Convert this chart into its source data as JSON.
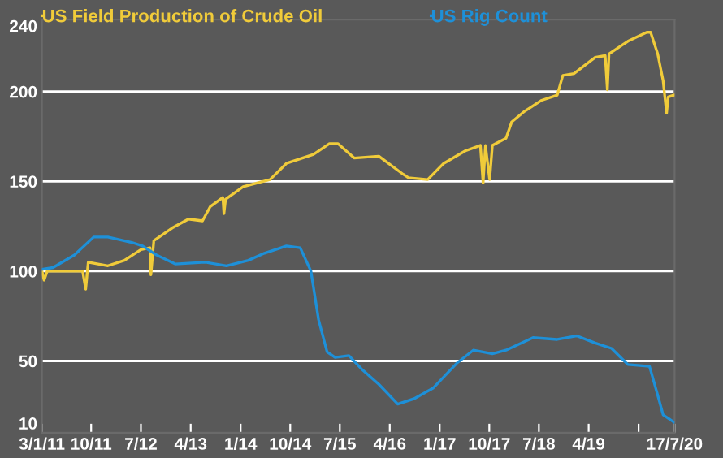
{
  "chart_data": {
    "type": "line",
    "legend": "top left",
    "grid": "y",
    "xlim": [
      "2011-01-03",
      "2020-07-17"
    ],
    "xticks": [
      {
        "value": "2011-01-03",
        "label": "3/1/11"
      },
      {
        "value": "2011-10-01",
        "label": "10/11"
      },
      {
        "value": "2012-07-01",
        "label": "7/12"
      },
      {
        "value": "2013-04-01",
        "label": "4/13"
      },
      {
        "value": "2014-01-01",
        "label": "1/14"
      },
      {
        "value": "2014-10-01",
        "label": "10/14"
      },
      {
        "value": "2015-07-01",
        "label": "7/15"
      },
      {
        "value": "2016-04-01",
        "label": "4/16"
      },
      {
        "value": "2017-01-01",
        "label": "1/17"
      },
      {
        "value": "2017-10-01",
        "label": "10/17"
      },
      {
        "value": "2018-07-01",
        "label": "7/18"
      },
      {
        "value": "2019-04-01",
        "label": "4/19"
      },
      {
        "value": "2020-01-01",
        "label": null
      },
      {
        "value": "2020-07-17",
        "label": "17/7/20"
      }
    ],
    "ylim": [
      10,
      240
    ],
    "yticks": [
      10,
      50,
      100,
      150,
      200,
      240
    ],
    "series": [
      {
        "name": "US Field Production of Crude Oil",
        "color": "#f0cb3a",
        "x": [
          "2011-01-03",
          "2011-01-15",
          "2011-02-01",
          "2011-07-01",
          "2011-08-15",
          "2011-09-01",
          "2011-09-15",
          "2012-01-01",
          "2012-04-01",
          "2012-07-01",
          "2012-08-20",
          "2012-08-25",
          "2012-09-10",
          "2012-12-20",
          "2013-03-20",
          "2013-06-05",
          "2013-07-18",
          "2013-09-25",
          "2013-10-01",
          "2013-10-10",
          "2014-01-15",
          "2014-06-12",
          "2014-09-10",
          "2015-02-06",
          "2015-05-05",
          "2015-06-20",
          "2015-09-18",
          "2016-02-01",
          "2016-06-13",
          "2016-07-13",
          "2016-10-27",
          "2017-01-23",
          "2017-05-22",
          "2017-08-13",
          "2017-08-28",
          "2017-09-10",
          "2017-10-03",
          "2017-10-18",
          "2018-01-01",
          "2018-02-01",
          "2018-04-13",
          "2018-07-13",
          "2018-10-10",
          "2018-11-10",
          "2019-01-10",
          "2019-05-07",
          "2019-07-01",
          "2019-07-13",
          "2019-07-22",
          "2019-11-03",
          "2020-02-15",
          "2020-03-07",
          "2020-04-15",
          "2020-05-15",
          "2020-06-03",
          "2020-06-12",
          "2020-07-13"
        ],
        "values": [
          100,
          95,
          100,
          100,
          100,
          90,
          105,
          103,
          106,
          112,
          113,
          98,
          117,
          124,
          129,
          128,
          136,
          141,
          132,
          140,
          147,
          151,
          160,
          165,
          171,
          171,
          163,
          164,
          154,
          152,
          151,
          160,
          167,
          170,
          149,
          170,
          151,
          170,
          174,
          183,
          189,
          195,
          198,
          209,
          210,
          219,
          220,
          201,
          221,
          228,
          233,
          233,
          221,
          206,
          188,
          197,
          198
        ]
      },
      {
        "name": "US Rig Count",
        "color": "#1e90d8",
        "x": [
          "2011-01-03",
          "2011-03-05",
          "2011-07-01",
          "2011-10-15",
          "2012-01-01",
          "2012-05-12",
          "2012-07-10",
          "2012-09-25",
          "2013-01-06",
          "2013-06-20",
          "2013-10-15",
          "2014-02-12",
          "2014-05-12",
          "2014-09-10",
          "2014-11-25",
          "2015-01-23",
          "2015-03-06",
          "2015-04-22",
          "2015-06-05",
          "2015-08-20",
          "2015-11-03",
          "2016-02-01",
          "2016-05-15",
          "2016-08-13",
          "2016-11-27",
          "2017-04-08",
          "2017-07-05",
          "2017-10-18",
          "2018-01-01",
          "2018-05-30",
          "2018-10-10",
          "2019-01-25",
          "2019-05-07",
          "2019-08-05",
          "2019-11-03",
          "2020-03-01",
          "2020-04-15",
          "2020-05-15",
          "2020-07-13"
        ],
        "values": [
          101,
          102,
          109,
          119,
          119,
          116,
          114,
          109,
          104,
          105,
          103,
          106,
          110,
          114,
          113,
          100,
          73,
          55,
          52,
          53,
          45,
          37,
          26,
          29,
          35,
          49,
          56,
          54,
          56,
          63,
          62,
          64,
          60,
          57,
          48,
          47,
          31,
          20,
          16
        ]
      }
    ]
  }
}
